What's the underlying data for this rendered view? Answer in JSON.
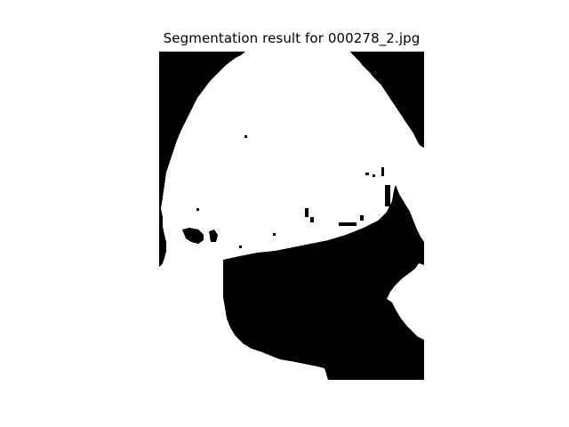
{
  "title": "Segmentation result for 000278_2.jpg",
  "colors": {
    "background": "#000000",
    "foreground": "#ffffff"
  }
}
